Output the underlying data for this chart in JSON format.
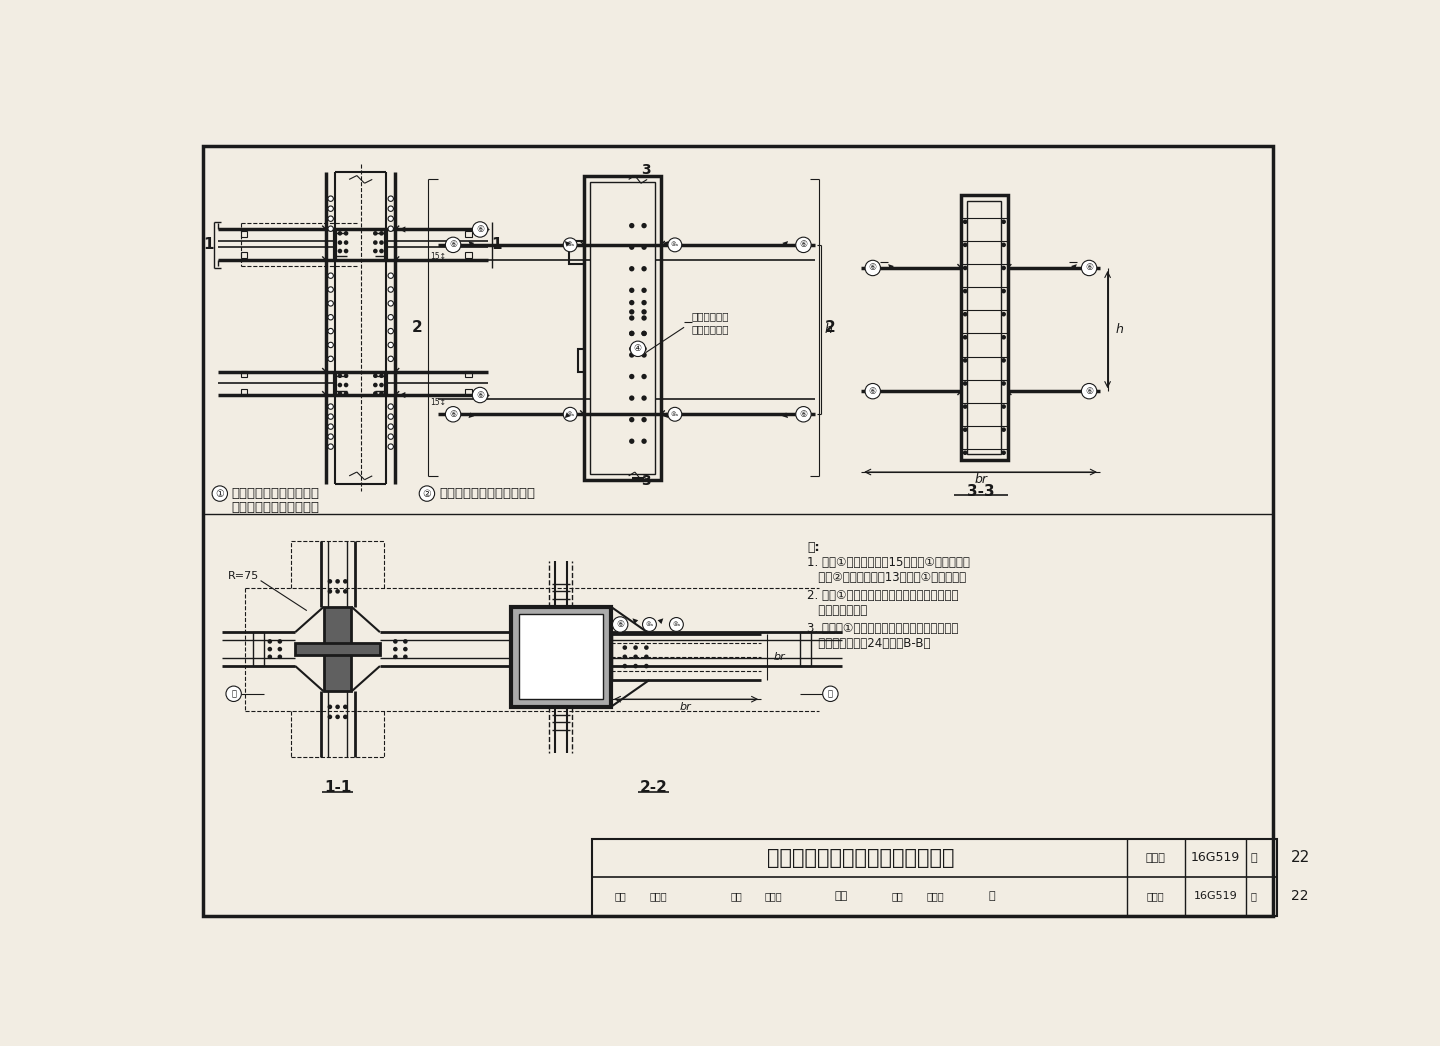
{
  "bg_color": "#f2ede3",
  "line_color": "#1a1a1a",
  "title_text": "梁与框架柱的刚性连接构造（三）",
  "atlas_label": "图集号",
  "atlas_num": "16G519",
  "page_label": "页",
  "page_num": "22",
  "review_row1": "审核",
  "review_name1": "郁银泉",
  "review_row2": "校对",
  "review_name2": "武子斌",
  "review_sign2": "武城",
  "review_row3": "设计",
  "review_name3": "宋文晶",
  "note_title": "注:",
  "note1a": "1. 节点①的柱身应与第15页节点①配合使用。",
  "note1b": "   节点②的柱身应与第13页节点①配合使用。",
  "note2a": "2. 节点①只适用于型钢混凝土结构的柱中型钢",
  "note2b": "   和钢梁的连接。",
  "note3a": "3. 在节点①中，当梁端的腹板采用工地焊缝连",
  "note3b": "   接时，可参见第24页中的B-B。",
  "label1a": "在型钢混凝土结构中梁与",
  "label1b": "十字形截面柱的刚性连接",
  "label2": "箱形梁与箱形柱的刚性连接",
  "label_33": "3-3",
  "label_11": "1-1",
  "label_22": "2-2",
  "R75": "R=75"
}
